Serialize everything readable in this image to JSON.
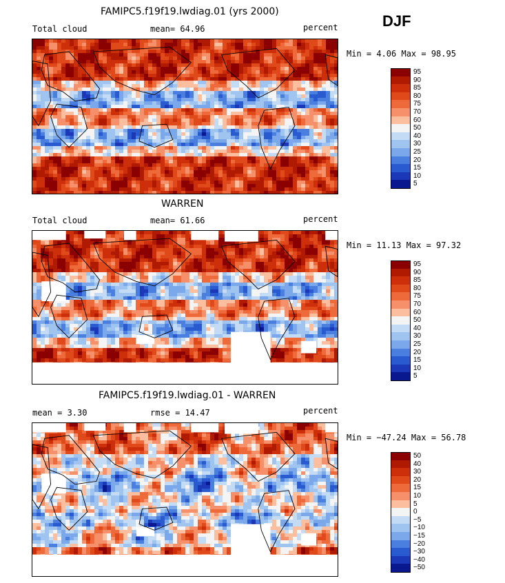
{
  "season": "DJF",
  "panels": [
    {
      "title": "FAMIPC5.f19f19.lwdiag.01 (yrs 2000)",
      "left_label": "Total cloud",
      "mid_label": "mean=  64.96",
      "right_label": "percent",
      "minmax": "Min =   4.06 Max =  98.95",
      "levels": [
        "95",
        "90",
        "85",
        "80",
        "75",
        "70",
        "60",
        "50",
        "40",
        "30",
        "25",
        "20",
        "15",
        "10",
        "5"
      ]
    },
    {
      "title": "WARREN",
      "left_label": "Total cloud",
      "mid_label": "mean=  61.66",
      "right_label": "percent",
      "minmax": "Min =  11.13 Max =  97.32",
      "levels": [
        "95",
        "90",
        "85",
        "80",
        "75",
        "70",
        "60",
        "50",
        "40",
        "30",
        "25",
        "20",
        "15",
        "10",
        "5"
      ]
    },
    {
      "title": "FAMIPC5.f19f19.lwdiag.01 - WARREN",
      "left_label": "mean =   3.30",
      "mid_label": "rmse =  14.47",
      "right_label": "percent",
      "minmax": "Min = −47.24 Max =  56.78",
      "levels": [
        "50",
        "40",
        "30",
        "20",
        "15",
        "10",
        "5",
        "0",
        "−5",
        "−10",
        "−15",
        "−20",
        "−30",
        "−40",
        "−50"
      ]
    }
  ],
  "colors": {
    "scale": [
      "#8b0000",
      "#b01a00",
      "#cc2f0a",
      "#e04a1a",
      "#ef6a3a",
      "#f5906a",
      "#fbbfa0",
      "#f4f4f4",
      "#c4dbf5",
      "#a0c4f0",
      "#7aa8ea",
      "#4a7fe0",
      "#2a5ad0",
      "#1a38b8",
      "#0a1890"
    ],
    "land_outline": "#000000",
    "missing": "#ffffff"
  }
}
